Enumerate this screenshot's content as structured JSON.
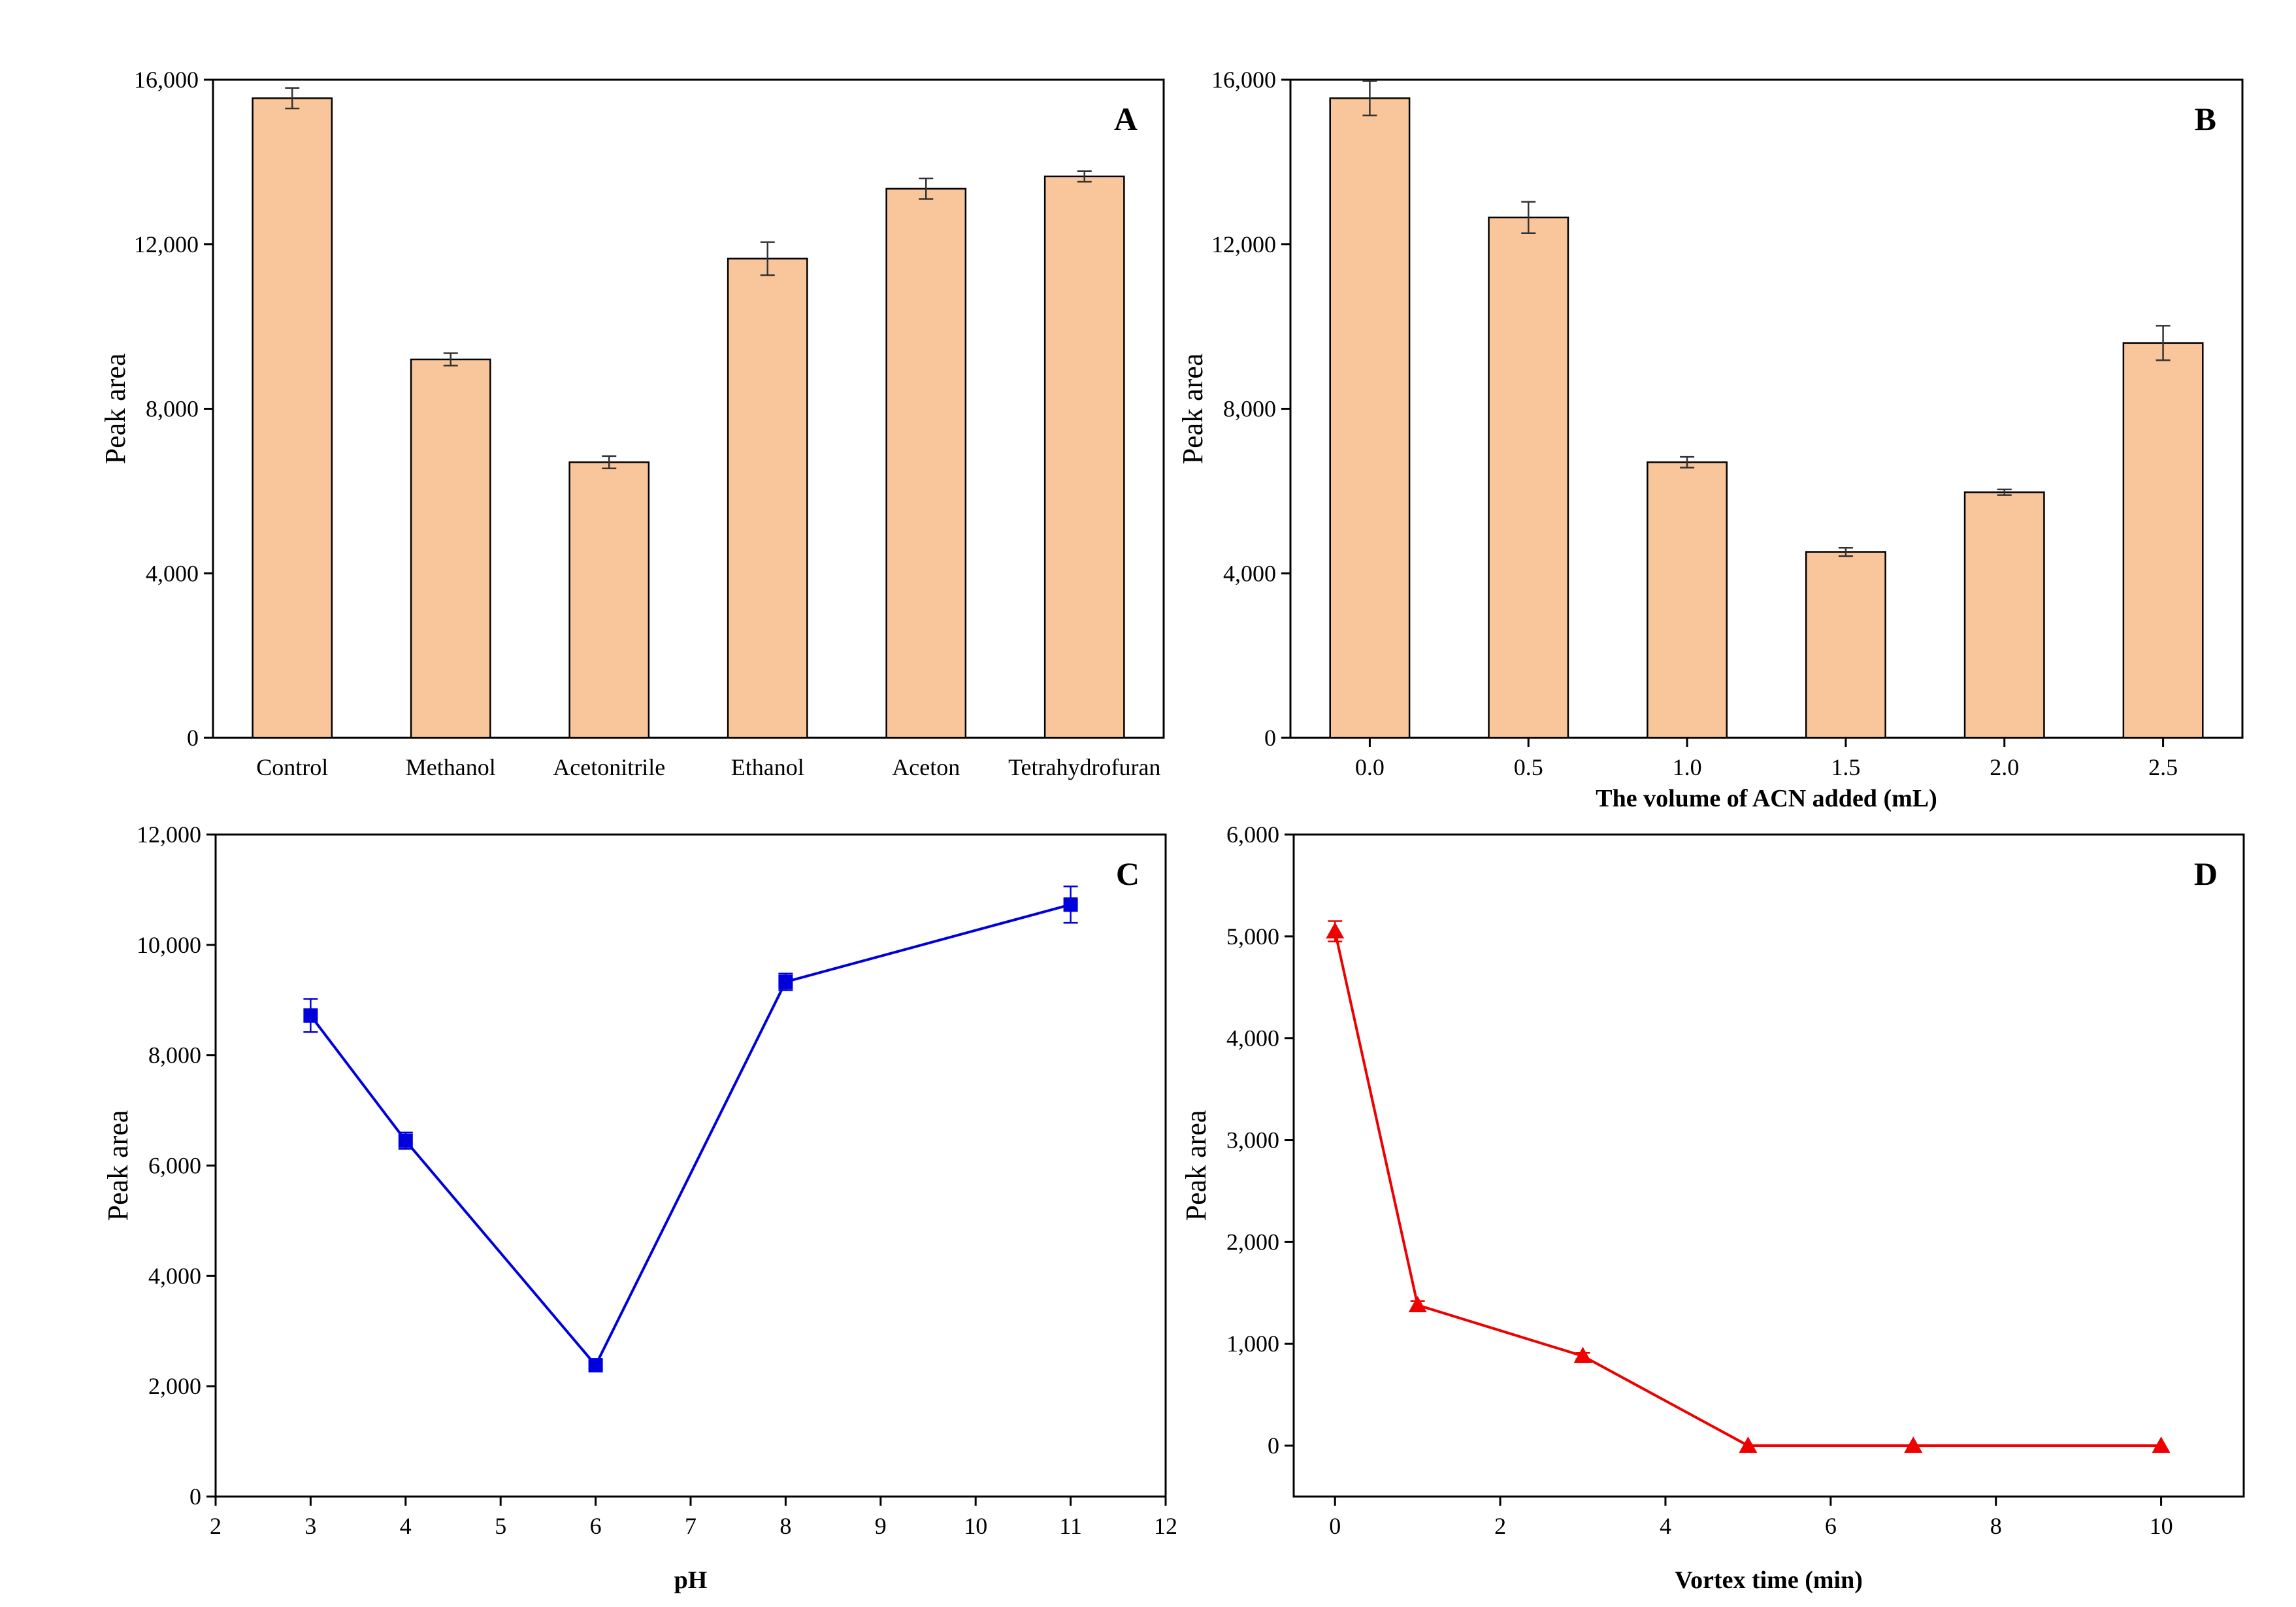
{
  "chart_data": [
    {
      "panel": "A",
      "type": "bar",
      "categories": [
        "Control",
        "Methanol",
        "Acetonitrile",
        "Ethanol",
        "Aceton",
        "Tetrahydrofuran"
      ],
      "values": [
        15550,
        9200,
        6700,
        11650,
        13350,
        13650
      ],
      "errors": [
        250,
        150,
        150,
        400,
        250,
        130
      ],
      "xlabel": "",
      "ylabel": "Peak area",
      "ylim": [
        0,
        16000
      ],
      "yticks": [
        0,
        4000,
        8000,
        12000,
        16000
      ],
      "ytick_labels": [
        "0",
        "4,000",
        "8,000",
        "12,000",
        "16,000"
      ],
      "bar_color": "#F9C59B"
    },
    {
      "panel": "B",
      "type": "bar",
      "categories": [
        "0.0",
        "0.5",
        "1.0",
        "1.5",
        "2.0",
        "2.5"
      ],
      "values": [
        15550,
        12650,
        6700,
        4520,
        5970,
        9600
      ],
      "errors": [
        420,
        380,
        130,
        100,
        70,
        420
      ],
      "xlabel": "The volume of ACN added (mL)",
      "ylabel": "Peak area",
      "ylim": [
        0,
        16000
      ],
      "yticks": [
        0,
        4000,
        8000,
        12000,
        16000
      ],
      "ytick_labels": [
        "0",
        "4,000",
        "8,000",
        "12,000",
        "16,000"
      ],
      "bar_color": "#F9C59B"
    },
    {
      "panel": "C",
      "type": "line",
      "x": [
        3,
        4,
        6,
        8,
        11
      ],
      "values": [
        8720,
        6450,
        2380,
        9330,
        10730
      ],
      "errors": [
        300,
        150,
        60,
        150,
        330
      ],
      "xlabel": "pH",
      "ylabel": "Peak area",
      "xlim": [
        2,
        12
      ],
      "xticks": [
        2,
        3,
        4,
        5,
        6,
        7,
        8,
        9,
        10,
        11,
        12
      ],
      "ylim": [
        0,
        12000
      ],
      "yticks": [
        0,
        2000,
        4000,
        6000,
        8000,
        10000,
        12000
      ],
      "ytick_labels": [
        "0",
        "2,000",
        "4,000",
        "6,000",
        "8,000",
        "10,000",
        "12,000"
      ],
      "marker": "square",
      "color": "#0000DD"
    },
    {
      "panel": "D",
      "type": "line",
      "x": [
        0,
        1,
        3,
        5,
        7,
        10
      ],
      "values": [
        5050,
        1380,
        880,
        0,
        0,
        0
      ],
      "errors": [
        100,
        40,
        30,
        0,
        0,
        0
      ],
      "xlabel": "Vortex time (min)",
      "ylabel": "Peak area",
      "xlim": [
        -0.5,
        11
      ],
      "xticks": [
        0,
        2,
        4,
        6,
        8,
        10
      ],
      "ylim": [
        -500,
        6000
      ],
      "yticks": [
        0,
        1000,
        2000,
        3000,
        4000,
        5000,
        6000
      ],
      "ytick_labels": [
        "0",
        "1,000",
        "2,000",
        "3,000",
        "4,000",
        "5,000",
        "6,000"
      ],
      "marker": "triangle",
      "color": "#EE0000"
    }
  ]
}
